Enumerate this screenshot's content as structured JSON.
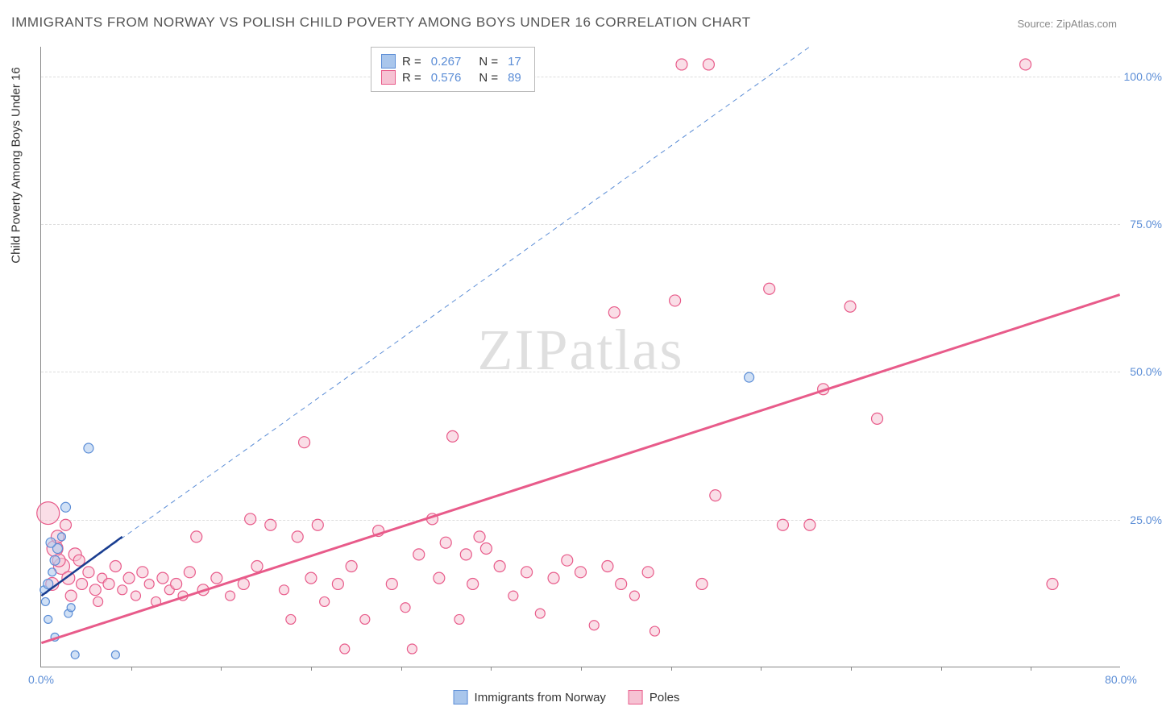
{
  "title": "IMMIGRANTS FROM NORWAY VS POLISH CHILD POVERTY AMONG BOYS UNDER 16 CORRELATION CHART",
  "source": "Source: ZipAtlas.com",
  "ylabel": "Child Poverty Among Boys Under 16",
  "watermark": "ZIPatlas",
  "legend_top": {
    "series": [
      {
        "swatch_fill": "#a9c6ec",
        "swatch_border": "#5b8dd6",
        "r_label": "R =",
        "r_value": "0.267",
        "n_label": "N =",
        "n_value": "17"
      },
      {
        "swatch_fill": "#f6c2d3",
        "swatch_border": "#e85b8a",
        "r_label": "R =",
        "r_value": "0.576",
        "n_label": "N =",
        "n_value": "89"
      }
    ]
  },
  "legend_bottom": {
    "items": [
      {
        "swatch_fill": "#a9c6ec",
        "swatch_border": "#5b8dd6",
        "label": "Immigrants from Norway"
      },
      {
        "swatch_fill": "#f6c2d3",
        "swatch_border": "#e85b8a",
        "label": "Poles"
      }
    ]
  },
  "chart": {
    "type": "scatter",
    "xlim": [
      0,
      80
    ],
    "ylim": [
      0,
      105
    ],
    "xticks": [
      0,
      80
    ],
    "yticks": [
      25,
      50,
      75,
      100
    ],
    "xtick_labels": [
      "0.0%",
      "80.0%"
    ],
    "ytick_labels": [
      "25.0%",
      "50.0%",
      "75.0%",
      "100.0%"
    ],
    "x_minor_ticks": [
      6.67,
      13.33,
      20,
      26.67,
      33.33,
      40,
      46.67,
      53.33,
      60,
      66.67,
      73.33
    ],
    "grid_color": "#dddddd",
    "background": "#ffffff",
    "series_blue": {
      "color_fill": "#a9c6ec",
      "color_border": "#5b8dd6",
      "points": [
        {
          "x": 0.2,
          "y": 13,
          "r": 5
        },
        {
          "x": 0.3,
          "y": 11,
          "r": 5
        },
        {
          "x": 0.5,
          "y": 14,
          "r": 6
        },
        {
          "x": 0.8,
          "y": 16,
          "r": 5
        },
        {
          "x": 1.0,
          "y": 18,
          "r": 6
        },
        {
          "x": 1.2,
          "y": 20,
          "r": 6
        },
        {
          "x": 1.5,
          "y": 22,
          "r": 5
        },
        {
          "x": 1.8,
          "y": 27,
          "r": 6
        },
        {
          "x": 2.0,
          "y": 9,
          "r": 5
        },
        {
          "x": 2.2,
          "y": 10,
          "r": 5
        },
        {
          "x": 2.5,
          "y": 2,
          "r": 5
        },
        {
          "x": 3.5,
          "y": 37,
          "r": 6
        },
        {
          "x": 5.5,
          "y": 2,
          "r": 5
        },
        {
          "x": 1.0,
          "y": 5,
          "r": 5
        },
        {
          "x": 0.7,
          "y": 21,
          "r": 6
        },
        {
          "x": 52.5,
          "y": 49,
          "r": 6
        },
        {
          "x": 0.5,
          "y": 8,
          "r": 5
        }
      ],
      "trend_solid": {
        "x1": 0,
        "y1": 12,
        "x2": 6,
        "y2": 22,
        "color": "#1a3d8f",
        "width": 2.5
      },
      "trend_dashed": {
        "x1": 0,
        "y1": 12,
        "x2": 57,
        "y2": 105,
        "color": "#5b8dd6",
        "width": 1,
        "dash": "6,5"
      }
    },
    "series_pink": {
      "color_fill": "#f6c2d3",
      "color_border": "#e85b8a",
      "points": [
        {
          "x": 0.5,
          "y": 26,
          "r": 14
        },
        {
          "x": 1,
          "y": 20,
          "r": 10
        },
        {
          "x": 1.2,
          "y": 22,
          "r": 8
        },
        {
          "x": 1.5,
          "y": 17,
          "r": 10
        },
        {
          "x": 2,
          "y": 15,
          "r": 8
        },
        {
          "x": 2.2,
          "y": 12,
          "r": 7
        },
        {
          "x": 2.5,
          "y": 19,
          "r": 8
        },
        {
          "x": 3,
          "y": 14,
          "r": 7
        },
        {
          "x": 3.5,
          "y": 16,
          "r": 7
        },
        {
          "x": 4,
          "y": 13,
          "r": 7
        },
        {
          "x": 4.5,
          "y": 15,
          "r": 6
        },
        {
          "x": 5,
          "y": 14,
          "r": 7
        },
        {
          "x": 5.5,
          "y": 17,
          "r": 7
        },
        {
          "x": 6,
          "y": 13,
          "r": 6
        },
        {
          "x": 6.5,
          "y": 15,
          "r": 7
        },
        {
          "x": 7,
          "y": 12,
          "r": 6
        },
        {
          "x": 7.5,
          "y": 16,
          "r": 7
        },
        {
          "x": 8,
          "y": 14,
          "r": 6
        },
        {
          "x": 8.5,
          "y": 11,
          "r": 6
        },
        {
          "x": 9,
          "y": 15,
          "r": 7
        },
        {
          "x": 9.5,
          "y": 13,
          "r": 6
        },
        {
          "x": 10,
          "y": 14,
          "r": 7
        },
        {
          "x": 10.5,
          "y": 12,
          "r": 6
        },
        {
          "x": 11,
          "y": 16,
          "r": 7
        },
        {
          "x": 12,
          "y": 13,
          "r": 7
        },
        {
          "x": 13,
          "y": 15,
          "r": 7
        },
        {
          "x": 14,
          "y": 12,
          "r": 6
        },
        {
          "x": 15,
          "y": 14,
          "r": 7
        },
        {
          "x": 15.5,
          "y": 25,
          "r": 7
        },
        {
          "x": 16,
          "y": 17,
          "r": 7
        },
        {
          "x": 17,
          "y": 24,
          "r": 7
        },
        {
          "x": 18,
          "y": 13,
          "r": 6
        },
        {
          "x": 18.5,
          "y": 8,
          "r": 6
        },
        {
          "x": 19,
          "y": 22,
          "r": 7
        },
        {
          "x": 19.5,
          "y": 38,
          "r": 7
        },
        {
          "x": 20,
          "y": 15,
          "r": 7
        },
        {
          "x": 20.5,
          "y": 24,
          "r": 7
        },
        {
          "x": 21,
          "y": 11,
          "r": 6
        },
        {
          "x": 22,
          "y": 14,
          "r": 7
        },
        {
          "x": 22.5,
          "y": 3,
          "r": 6
        },
        {
          "x": 23,
          "y": 17,
          "r": 7
        },
        {
          "x": 24,
          "y": 8,
          "r": 6
        },
        {
          "x": 25,
          "y": 23,
          "r": 7
        },
        {
          "x": 26,
          "y": 14,
          "r": 7
        },
        {
          "x": 27,
          "y": 10,
          "r": 6
        },
        {
          "x": 27.5,
          "y": 3,
          "r": 6
        },
        {
          "x": 28,
          "y": 19,
          "r": 7
        },
        {
          "x": 29,
          "y": 25,
          "r": 7
        },
        {
          "x": 29.5,
          "y": 15,
          "r": 7
        },
        {
          "x": 30,
          "y": 21,
          "r": 7
        },
        {
          "x": 30.5,
          "y": 39,
          "r": 7
        },
        {
          "x": 31,
          "y": 8,
          "r": 6
        },
        {
          "x": 31.5,
          "y": 19,
          "r": 7
        },
        {
          "x": 32,
          "y": 14,
          "r": 7
        },
        {
          "x": 32.5,
          "y": 22,
          "r": 7
        },
        {
          "x": 33,
          "y": 20,
          "r": 7
        },
        {
          "x": 34,
          "y": 17,
          "r": 7
        },
        {
          "x": 35,
          "y": 12,
          "r": 6
        },
        {
          "x": 36,
          "y": 16,
          "r": 7
        },
        {
          "x": 37,
          "y": 9,
          "r": 6
        },
        {
          "x": 38,
          "y": 15,
          "r": 7
        },
        {
          "x": 39,
          "y": 18,
          "r": 7
        },
        {
          "x": 40,
          "y": 16,
          "r": 7
        },
        {
          "x": 41,
          "y": 7,
          "r": 6
        },
        {
          "x": 42,
          "y": 17,
          "r": 7
        },
        {
          "x": 42.5,
          "y": 60,
          "r": 7
        },
        {
          "x": 43,
          "y": 14,
          "r": 7
        },
        {
          "x": 44,
          "y": 12,
          "r": 6
        },
        {
          "x": 45,
          "y": 16,
          "r": 7
        },
        {
          "x": 45.5,
          "y": 6,
          "r": 6
        },
        {
          "x": 47,
          "y": 62,
          "r": 7
        },
        {
          "x": 47.5,
          "y": 102,
          "r": 7
        },
        {
          "x": 49,
          "y": 14,
          "r": 7
        },
        {
          "x": 49.5,
          "y": 102,
          "r": 7
        },
        {
          "x": 50,
          "y": 29,
          "r": 7
        },
        {
          "x": 54,
          "y": 64,
          "r": 7
        },
        {
          "x": 55,
          "y": 24,
          "r": 7
        },
        {
          "x": 57,
          "y": 24,
          "r": 7
        },
        {
          "x": 58,
          "y": 47,
          "r": 7
        },
        {
          "x": 60,
          "y": 61,
          "r": 7
        },
        {
          "x": 62,
          "y": 42,
          "r": 7
        },
        {
          "x": 73,
          "y": 102,
          "r": 7
        },
        {
          "x": 75,
          "y": 14,
          "r": 7
        },
        {
          "x": 1.3,
          "y": 18,
          "r": 8
        },
        {
          "x": 1.8,
          "y": 24,
          "r": 7
        },
        {
          "x": 0.8,
          "y": 14,
          "r": 8
        },
        {
          "x": 2.8,
          "y": 18,
          "r": 7
        },
        {
          "x": 4.2,
          "y": 11,
          "r": 6
        },
        {
          "x": 11.5,
          "y": 22,
          "r": 7
        }
      ],
      "trend_solid": {
        "x1": 0,
        "y1": 4,
        "x2": 80,
        "y2": 63,
        "color": "#e85b8a",
        "width": 3
      }
    }
  }
}
